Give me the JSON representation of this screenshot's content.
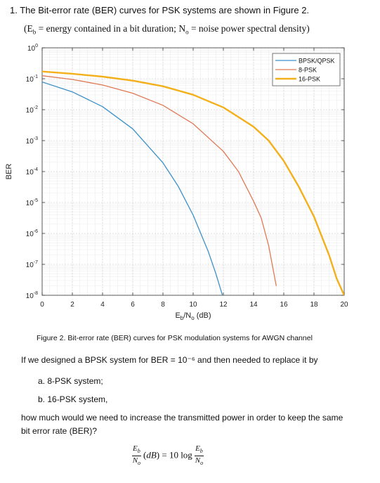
{
  "question": {
    "number": "1.",
    "heading": "The Bit-error rate (BER) curves for PSK systems are shown in Figure 2.",
    "definitions": "(E_b = energy contained in a bit duration; N_o = noise power spectral density)",
    "caption": "Figure 2. Bit-error rate (BER) curves for PSK modulation systems for AWGN channel",
    "prompt": "If we designed a BPSK system for BER = 10⁻⁶ and then needed to replace it by",
    "items": [
      "a. 8-PSK system;",
      "b. 16-PSK system,"
    ],
    "closing_line1": "how much would we need to increase the transmitted power in order to keep the same",
    "closing_line2": "bit error rate (BER)?",
    "formula": "Eb/No (dB) = 10 log Eb/No"
  },
  "chart_data": {
    "type": "line",
    "title": "",
    "xlabel": "E_b/N_o (dB)",
    "ylabel": "BER",
    "xlim": [
      0,
      20
    ],
    "ylim": [
      1e-08,
      1
    ],
    "yscale": "log",
    "grid": true,
    "legend_position": "top-right",
    "xticks": [
      0,
      2,
      4,
      6,
      8,
      10,
      12,
      14,
      16,
      18,
      20
    ],
    "yticks": [
      "10^0",
      "10^-1",
      "10^-2",
      "10^-3",
      "10^-4",
      "10^-5",
      "10^-6",
      "10^-7",
      "10^-8"
    ],
    "series": [
      {
        "name": "BPSK/QPSK",
        "color": "#3c91c9",
        "x": [
          0,
          2,
          4,
          6,
          8,
          9,
          10,
          10.5,
          11,
          11.5,
          12
        ],
        "y": [
          0.0786,
          0.0375,
          0.0125,
          0.0024,
          0.000191,
          3.4e-05,
          3.9e-06,
          1e-06,
          2.6e-07,
          5e-08,
          8e-09
        ]
      },
      {
        "name": "8-PSK",
        "color": "#e07a55",
        "x": [
          0,
          2,
          4,
          6,
          8,
          10,
          12,
          13,
          14,
          14.5,
          15,
          15.5
        ],
        "y": [
          0.125,
          0.095,
          0.0627,
          0.0341,
          0.0138,
          0.0035,
          0.00045,
          0.0001,
          1.1e-05,
          3.2e-06,
          4e-07,
          2e-08
        ]
      },
      {
        "name": "16-PSK",
        "color": "#f3b01a",
        "x": [
          0,
          2,
          4,
          6,
          8,
          10,
          12,
          14,
          15,
          16,
          17,
          18,
          19,
          19.5,
          20
        ],
        "y": [
          0.171,
          0.145,
          0.117,
          0.0868,
          0.0571,
          0.0303,
          0.0118,
          0.0028,
          0.001,
          0.00022,
          3.2e-05,
          3.5e-06,
          2e-07,
          3.5e-08,
          1e-08
        ]
      }
    ]
  }
}
